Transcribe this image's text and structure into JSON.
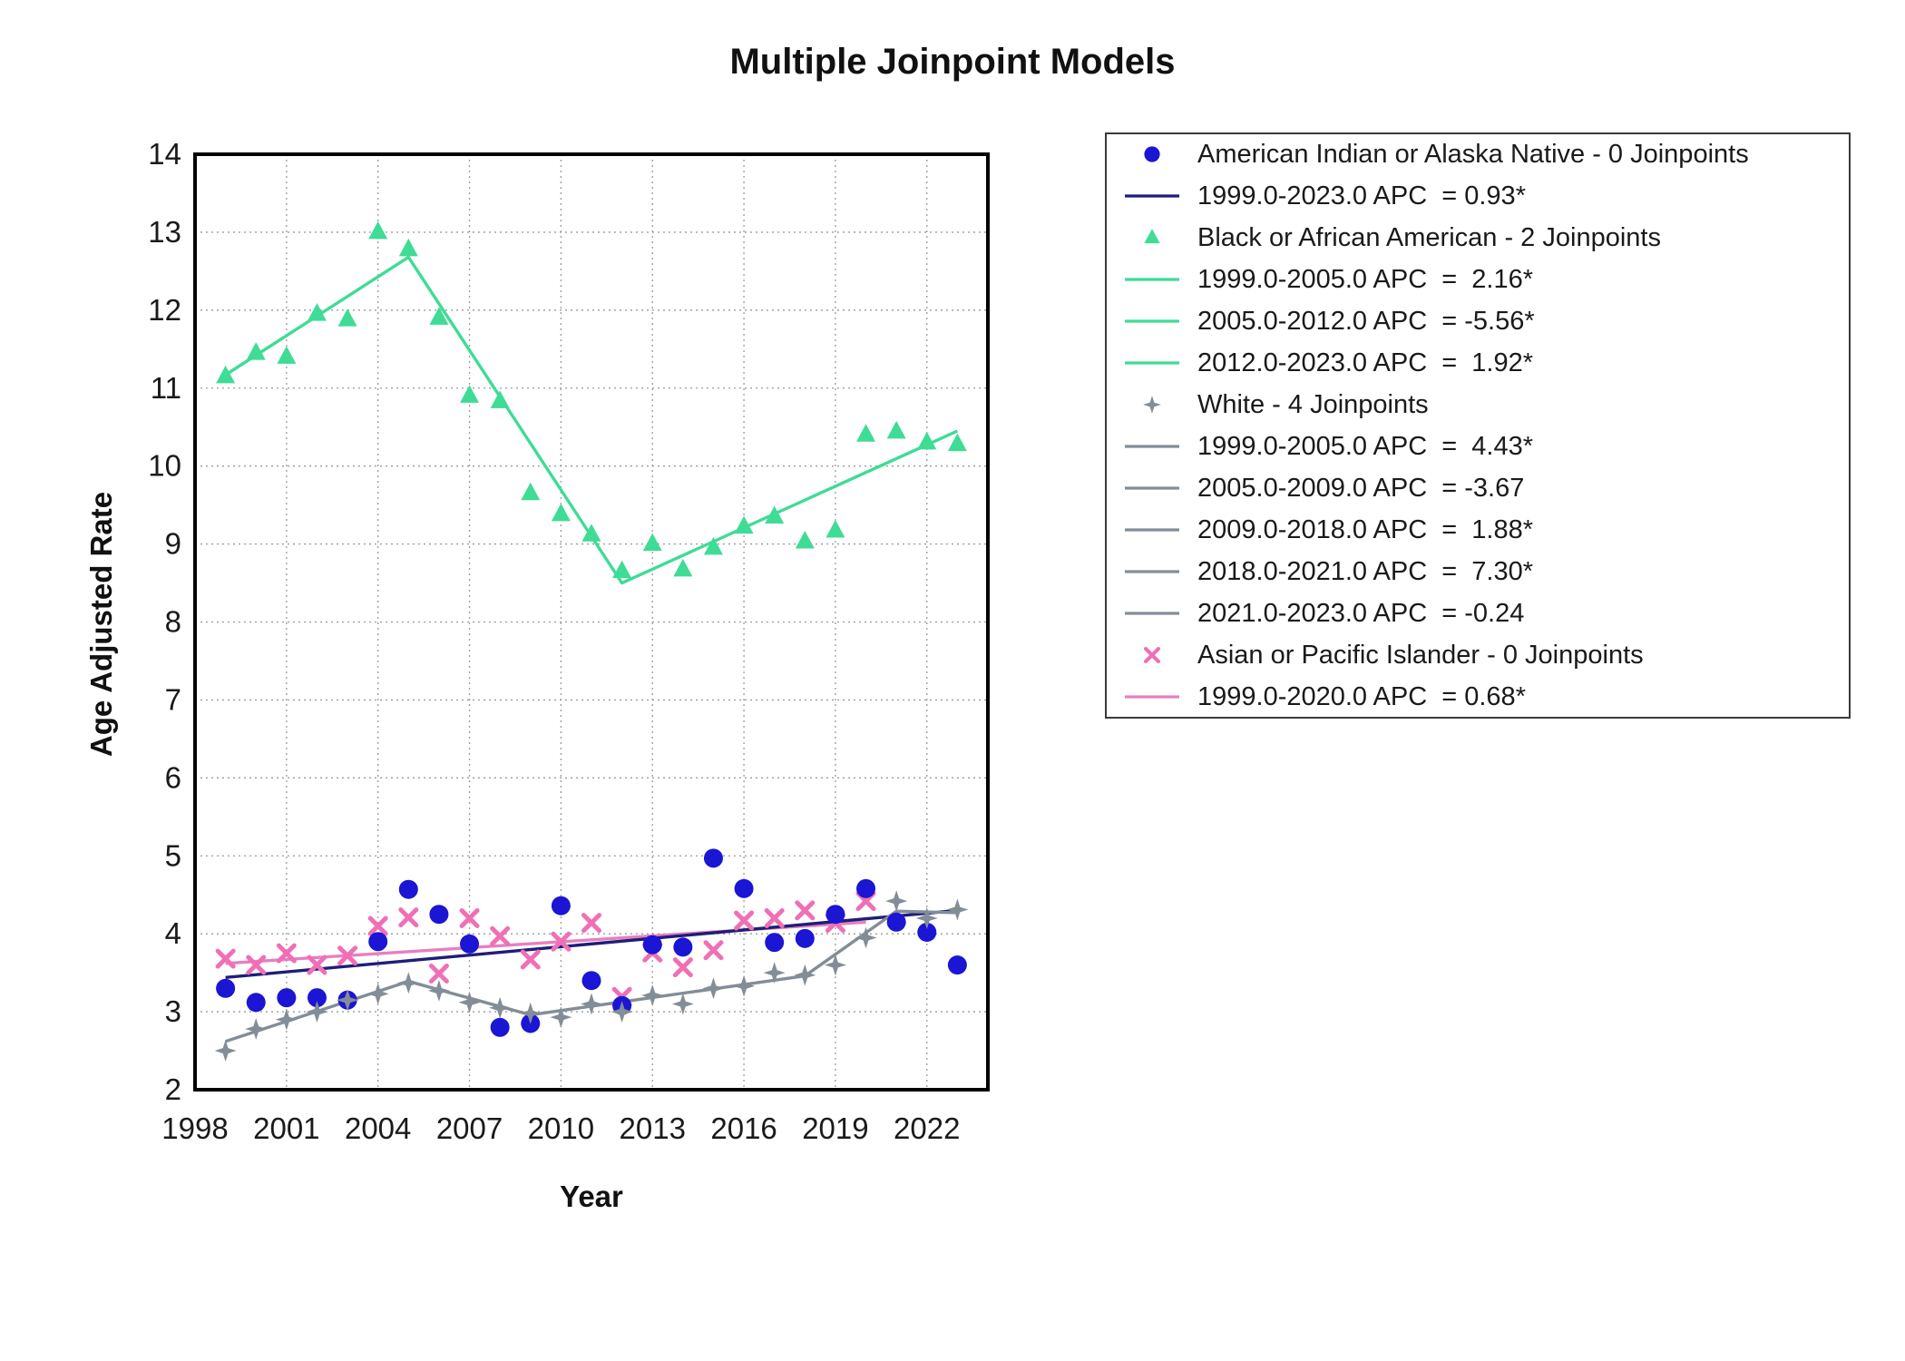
{
  "title": "Multiple Joinpoint Models",
  "colors": {
    "aian_marker": "#1b15d4",
    "aian_line": "#1e1e78",
    "black_series": "#3edc95",
    "white_series": "#838d97",
    "api_marker": "#f06fb5",
    "api_line": "#e77fc0",
    "axis_border": "#000000",
    "gridline": "#9b9b9b",
    "text": "#1a1a1a"
  },
  "chart_data": {
    "type": "scatter",
    "title": "Multiple Joinpoint Models",
    "xlabel": "Year",
    "ylabel": "Age Adjusted Rate",
    "xlim": [
      1998,
      2024
    ],
    "ylim": [
      2,
      14
    ],
    "x_ticks": [
      1998,
      2001,
      2004,
      2007,
      2010,
      2013,
      2016,
      2019,
      2022
    ],
    "y_ticks": [
      2,
      3,
      4,
      5,
      6,
      7,
      8,
      9,
      10,
      11,
      12,
      13,
      14
    ],
    "grid": "dotted",
    "legend_position": "outside-upper-right",
    "series": [
      {
        "name": "Asian or Pacific Islander",
        "joinpoints": 0,
        "marker": "xmark",
        "marker_color": "#f06fb5",
        "line_color": "#e77fc0",
        "x": [
          1999,
          2000,
          2001,
          2002,
          2003,
          2004,
          2005,
          2006,
          2007,
          2008,
          2009,
          2010,
          2011,
          2012,
          2013,
          2014,
          2015,
          2016,
          2017,
          2018,
          2019,
          2020
        ],
        "values": [
          3.68,
          3.6,
          3.75,
          3.6,
          3.72,
          4.1,
          4.21,
          3.49,
          4.2,
          3.97,
          3.67,
          3.9,
          4.14,
          3.19,
          3.76,
          3.57,
          3.79,
          4.17,
          4.2,
          4.3,
          4.14,
          4.42
        ],
        "fit_line": [
          [
            1999,
            3.62
          ],
          [
            2020,
            4.15
          ]
        ],
        "apc_segments": [
          "1999.0-2020.0 APC  = 0.68*"
        ]
      },
      {
        "name": "American Indian or Alaska Native",
        "joinpoints": 0,
        "marker": "circle",
        "marker_color": "#1b15d4",
        "line_color": "#1e1e78",
        "x": [
          1999,
          2000,
          2001,
          2002,
          2003,
          2004,
          2005,
          2006,
          2007,
          2008,
          2009,
          2010,
          2011,
          2012,
          2013,
          2014,
          2015,
          2016,
          2017,
          2018,
          2019,
          2020,
          2021,
          2022,
          2023
        ],
        "values": [
          3.3,
          3.12,
          3.18,
          3.18,
          3.15,
          3.9,
          4.57,
          4.25,
          3.87,
          2.8,
          2.85,
          4.36,
          3.4,
          3.08,
          3.86,
          3.83,
          4.97,
          4.58,
          3.89,
          3.94,
          4.25,
          4.58,
          4.15,
          4.02,
          3.6
        ],
        "fit_line": [
          [
            1999,
            3.44
          ],
          [
            2023,
            4.3
          ]
        ],
        "apc_segments": [
          "1999.0-2023.0 APC  = 0.93*"
        ]
      },
      {
        "name": "White",
        "joinpoints": 4,
        "marker": "star4",
        "marker_color": "#838d97",
        "line_color": "#838d97",
        "x": [
          1999,
          2000,
          2001,
          2002,
          2003,
          2004,
          2005,
          2006,
          2007,
          2008,
          2009,
          2010,
          2011,
          2012,
          2013,
          2014,
          2015,
          2016,
          2017,
          2018,
          2019,
          2020,
          2021,
          2022,
          2023
        ],
        "values": [
          2.5,
          2.78,
          2.9,
          3.0,
          3.15,
          3.23,
          3.37,
          3.27,
          3.12,
          3.05,
          2.98,
          2.93,
          3.1,
          3.0,
          3.21,
          3.1,
          3.3,
          3.33,
          3.5,
          3.47,
          3.6,
          3.95,
          4.42,
          4.2,
          4.31
        ],
        "fit_line": [
          [
            1999,
            2.62
          ],
          [
            2005,
            3.39
          ],
          [
            2009,
            2.96
          ],
          [
            2018,
            3.46
          ],
          [
            2021,
            4.29
          ],
          [
            2023,
            4.27
          ]
        ],
        "apc_segments": [
          "1999.0-2005.0 APC  =  4.43*",
          "2005.0-2009.0 APC  = -3.67",
          "2009.0-2018.0 APC  =  1.88*",
          "2018.0-2021.0 APC  =  7.30*",
          "2021.0-2023.0 APC  = -0.24"
        ]
      },
      {
        "name": "Black or African American",
        "joinpoints": 2,
        "marker": "triangle",
        "marker_color": "#3edc95",
        "line_color": "#3edc95",
        "x": [
          1999,
          2000,
          2001,
          2002,
          2003,
          2004,
          2005,
          2006,
          2007,
          2008,
          2009,
          2010,
          2011,
          2012,
          2013,
          2014,
          2015,
          2016,
          2017,
          2018,
          2019,
          2020,
          2021,
          2022,
          2023
        ],
        "values": [
          11.15,
          11.45,
          11.4,
          11.95,
          11.88,
          13.0,
          12.78,
          11.9,
          10.9,
          10.83,
          9.65,
          9.38,
          9.12,
          8.65,
          9.0,
          8.67,
          8.95,
          9.22,
          9.35,
          9.03,
          9.17,
          10.4,
          10.44,
          10.3,
          10.28
        ],
        "fit_line": [
          [
            1999,
            11.17
          ],
          [
            2005,
            12.68
          ],
          [
            2012,
            8.5
          ],
          [
            2023,
            10.45
          ]
        ],
        "apc_segments": [
          "1999.0-2005.0 APC  =  2.16*",
          "2005.0-2012.0 APC  = -5.56*",
          "2012.0-2023.0 APC  =  1.92*"
        ]
      }
    ],
    "legend": [
      {
        "type": "circle",
        "color": "#1b15d4",
        "label": "American Indian or Alaska Native - 0 Joinpoints"
      },
      {
        "type": "line",
        "color": "#1e1e78",
        "label": "1999.0-2023.0 APC  = 0.93*"
      },
      {
        "type": "triangle",
        "color": "#3edc95",
        "label": "Black or African American - 2 Joinpoints"
      },
      {
        "type": "line",
        "color": "#3edc95",
        "label": "1999.0-2005.0 APC  =  2.16*"
      },
      {
        "type": "line",
        "color": "#3edc95",
        "label": "2005.0-2012.0 APC  = -5.56*"
      },
      {
        "type": "line",
        "color": "#3edc95",
        "label": "2012.0-2023.0 APC  =  1.92*"
      },
      {
        "type": "star4",
        "color": "#838d97",
        "label": "White - 4 Joinpoints"
      },
      {
        "type": "line",
        "color": "#838d97",
        "label": "1999.0-2005.0 APC  =  4.43*"
      },
      {
        "type": "line",
        "color": "#838d97",
        "label": "2005.0-2009.0 APC  = -3.67"
      },
      {
        "type": "line",
        "color": "#838d97",
        "label": "2009.0-2018.0 APC  =  1.88*"
      },
      {
        "type": "line",
        "color": "#838d97",
        "label": "2018.0-2021.0 APC  =  7.30*"
      },
      {
        "type": "line",
        "color": "#838d97",
        "label": "2021.0-2023.0 APC  = -0.24"
      },
      {
        "type": "xmark",
        "color": "#f06fb5",
        "label": "Asian or Pacific Islander - 0 Joinpoints"
      },
      {
        "type": "line",
        "color": "#e77fc0",
        "label": "1999.0-2020.0 APC  = 0.68*"
      }
    ]
  }
}
